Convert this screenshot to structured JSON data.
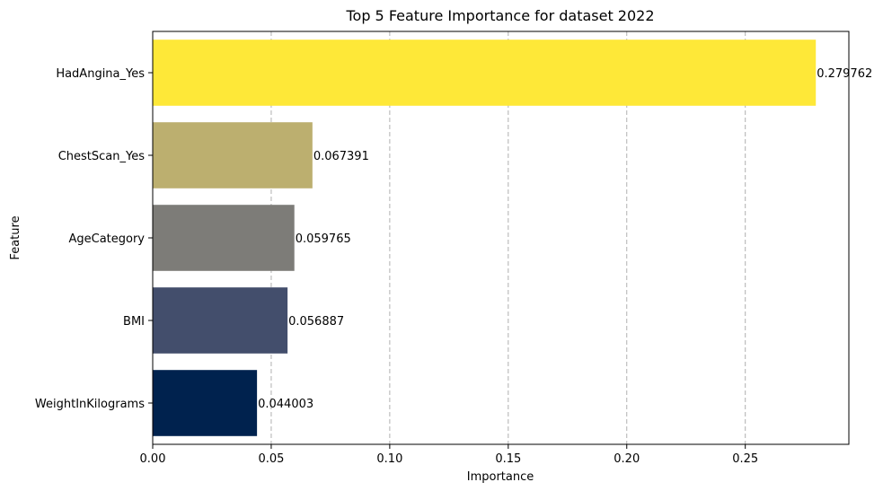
{
  "chart_data": {
    "type": "bar",
    "orientation": "horizontal",
    "title": "Top 5 Feature Importance for dataset 2022",
    "xlabel": "Importance",
    "ylabel": "Feature",
    "categories": [
      "WeightInKilograms",
      "BMI",
      "AgeCategory",
      "ChestScan_Yes",
      "HadAngina_Yes"
    ],
    "values": [
      0.044003,
      0.056887,
      0.059765,
      0.067391,
      0.279762
    ],
    "value_labels": [
      "0.044003",
      "0.056887",
      "0.059765",
      "0.067391",
      "0.279762"
    ],
    "colors": [
      "#00224e",
      "#434e6c",
      "#7d7c78",
      "#bcaf6f",
      "#fee838"
    ],
    "xlim": [
      0,
      0.2937
    ],
    "xticks": [
      0.0,
      0.05,
      0.1,
      0.15,
      0.2,
      0.25
    ],
    "xtick_labels": [
      "0.00",
      "0.05",
      "0.10",
      "0.15",
      "0.20",
      "0.25"
    ],
    "grid": "x-dashed",
    "legend": "none"
  }
}
